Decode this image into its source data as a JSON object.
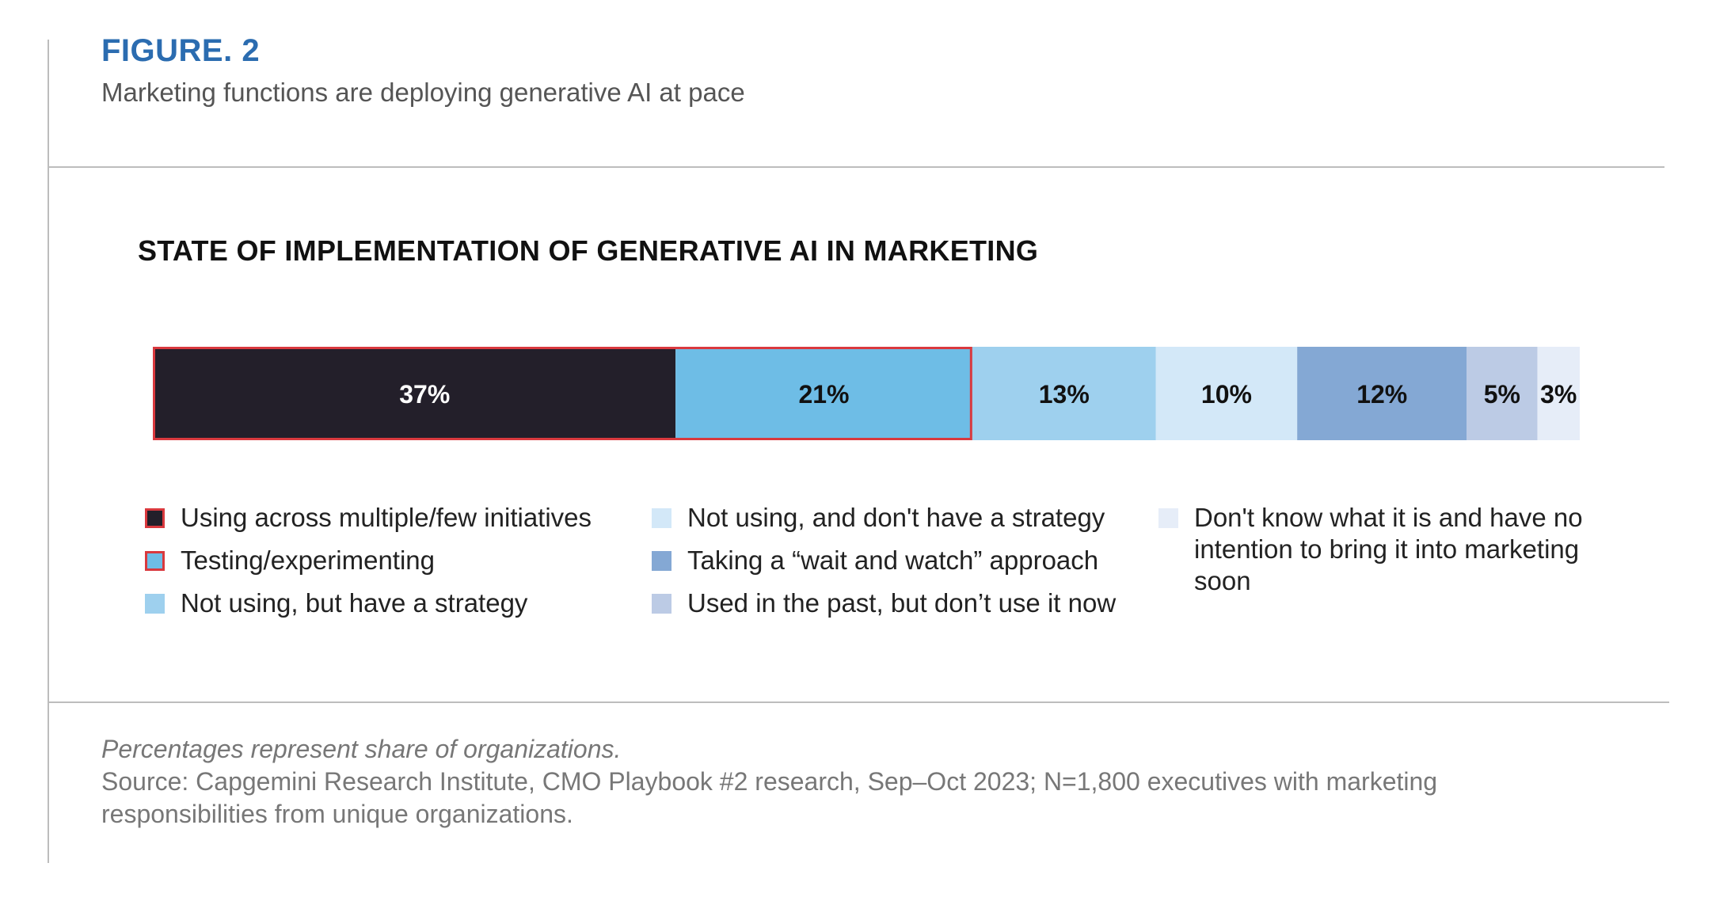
{
  "header": {
    "figure_label": "FIGURE. 2",
    "subtitle": "Marketing functions are deploying generative AI at pace"
  },
  "chart_data": {
    "type": "bar",
    "orientation": "horizontal-stacked-100",
    "title": "STATE OF IMPLEMENTATION OF GENERATIVE AI IN MARKETING",
    "unit": "%",
    "series": [
      {
        "name": "Using across multiple/few initiatives",
        "value": 37,
        "label": "37%",
        "color": "#231f2a",
        "text_color": "#ffffff",
        "highlighted": true
      },
      {
        "name": "Testing/experimenting",
        "value": 21,
        "label": "21%",
        "color": "#6ebde6",
        "text_color": "#111111",
        "highlighted": true
      },
      {
        "name": "Not using, but have a strategy",
        "value": 13,
        "label": "13%",
        "color": "#9ed0ee",
        "text_color": "#111111",
        "highlighted": false
      },
      {
        "name": "Not using, and don't have a strategy",
        "value": 10,
        "label": "10%",
        "color": "#d3e8f8",
        "text_color": "#111111",
        "highlighted": false
      },
      {
        "name": "Taking a “wait and watch” approach",
        "value": 12,
        "label": "12%",
        "color": "#84a8d4",
        "text_color": "#111111",
        "highlighted": false
      },
      {
        "name": "Used in the past, but don’t use it now",
        "value": 5,
        "label": "5%",
        "color": "#bccbe5",
        "text_color": "#111111",
        "highlighted": false
      },
      {
        "name": "Don't know what it is and have no intention to bring it into marketing soon",
        "value": 3,
        "label": "3%",
        "color": "#e6edf8",
        "text_color": "#111111",
        "highlighted": false
      }
    ],
    "highlight_color": "#d9393e",
    "legend": {
      "columns": [
        [
          {
            "label": "Using across multiple/few initiatives",
            "color": "#231f2a",
            "outlined": true
          },
          {
            "label": "Testing/experimenting",
            "color": "#6ebde6",
            "outlined": true
          },
          {
            "label": "Not using, but have a strategy",
            "color": "#9ed0ee",
            "outlined": false
          }
        ],
        [
          {
            "label": "Not using, and don't have a strategy",
            "color": "#d3e8f8",
            "outlined": false
          },
          {
            "label": "Taking a “wait and watch” approach",
            "color": "#84a8d4",
            "outlined": false
          },
          {
            "label": "Used in the past, but don’t use it now",
            "color": "#bccbe5",
            "outlined": false
          }
        ],
        [
          {
            "label": "Don't know what it is and have no intention to bring it into marketing soon",
            "color": "#e6edf8",
            "outlined": false
          }
        ]
      ]
    }
  },
  "footer": {
    "note": "Percentages represent share of organizations.",
    "source": "Source: Capgemini Research Institute, CMO Playbook #2 research, Sep–Oct 2023; N=1,800 executives with marketing responsibilities from unique organizations."
  }
}
